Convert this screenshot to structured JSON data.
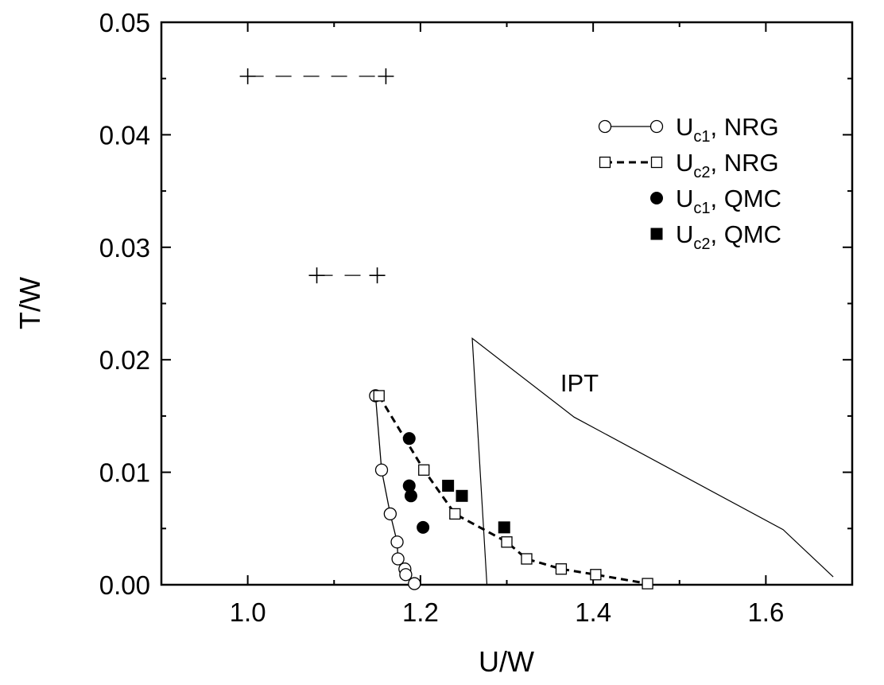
{
  "chart_data": {
    "type": "scatter",
    "title": "",
    "xlabel": "U/W",
    "ylabel": "T/W",
    "xlim": [
      0.9,
      1.7
    ],
    "ylim": [
      0.0,
      0.05
    ],
    "xticks": [
      1.0,
      1.2,
      1.4,
      1.6
    ],
    "xtick_labels": [
      "1.0",
      "1.2",
      "1.4",
      "1.6"
    ],
    "yticks": [
      0.0,
      0.01,
      0.02,
      0.03,
      0.04,
      0.05
    ],
    "ytick_labels": [
      "0.00",
      "0.01",
      "0.02",
      "0.03",
      "0.04",
      "0.05"
    ],
    "grid": false,
    "legend_position": "top-right",
    "series": [
      {
        "label_main": "U",
        "label_sub": "c1",
        "label_rest": ", NRG",
        "style": "open-circle-solid-line",
        "x": [
          1.148,
          1.155,
          1.165,
          1.173,
          1.174,
          1.182,
          1.183,
          1.193
        ],
        "y": [
          0.0168,
          0.0102,
          0.0063,
          0.0038,
          0.0023,
          0.0014,
          0.0009,
          0.0001
        ]
      },
      {
        "label_main": "U",
        "label_sub": "c2",
        "label_rest": ", NRG",
        "style": "open-square-dashed-line",
        "x": [
          1.152,
          1.204,
          1.24,
          1.3,
          1.323,
          1.363,
          1.403,
          1.463
        ],
        "y": [
          0.0168,
          0.0102,
          0.0063,
          0.0038,
          0.0023,
          0.0014,
          0.0009,
          0.0001
        ]
      },
      {
        "label_main": "U",
        "label_sub": "c1",
        "label_rest": ", QMC",
        "style": "filled-circle",
        "x": [
          1.187,
          1.187,
          1.189,
          1.203
        ],
        "y": [
          0.013,
          0.0088,
          0.0079,
          0.0051
        ]
      },
      {
        "label_main": "U",
        "label_sub": "c2",
        "label_rest": ", QMC",
        "style": "filled-square",
        "x": [
          1.232,
          1.248,
          1.297
        ],
        "y": [
          0.0088,
          0.0079,
          0.0051
        ]
      },
      {
        "style": "thin-line",
        "x": [
          1.277,
          1.26,
          1.378,
          1.62,
          1.678
        ],
        "y": [
          0.0,
          0.0219,
          0.0149,
          0.0049,
          0.0007
        ]
      },
      {
        "style": "plus-dashed-line",
        "x": [
          1.0,
          1.16
        ],
        "y": [
          0.0452,
          0.0452
        ]
      },
      {
        "style": "plus-dashed-line",
        "x": [
          1.08,
          1.15
        ],
        "y": [
          0.0275,
          0.0275
        ]
      }
    ],
    "annotations": [
      {
        "text": "IPT",
        "x": 1.362,
        "y": 0.0172
      }
    ]
  }
}
